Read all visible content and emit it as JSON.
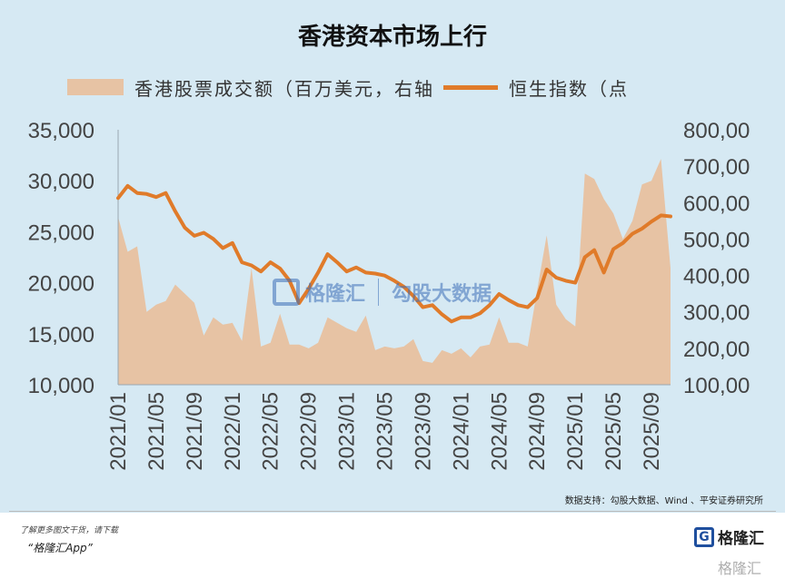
{
  "chart_data": {
    "type": "area+line",
    "title": "香港资本市场上行",
    "legend": [
      {
        "label": "香港股票成交额（百万美元，右轴",
        "kind": "area",
        "color": "#e7c3a4"
      },
      {
        "label": "恒生指数（点",
        "kind": "line",
        "color": "#e07b2a"
      }
    ],
    "left_axis": {
      "ticks": [
        "35,000",
        "30,000",
        "25,000",
        "20,000",
        "15,000",
        "10,000"
      ],
      "range": [
        10000,
        35000
      ]
    },
    "right_axis": {
      "ticks": [
        "800,00",
        "700,00",
        "600,00",
        "500,00",
        "400,00",
        "300,00",
        "200,00",
        "100,00"
      ],
      "range": [
        100000,
        800000
      ]
    },
    "x_tick_labels": [
      "2021/01",
      "2021/05",
      "2021/09",
      "2022/01",
      "2022/05",
      "2022/09",
      "2023/01",
      "2023/05",
      "2023/09",
      "2024/01",
      "2024/05",
      "2024/09",
      "2025/01",
      "2025/05",
      "2025/09"
    ],
    "x": [
      "2021/01",
      "2021/02",
      "2021/03",
      "2021/04",
      "2021/05",
      "2021/06",
      "2021/07",
      "2021/08",
      "2021/09",
      "2021/10",
      "2021/11",
      "2021/12",
      "2022/01",
      "2022/02",
      "2022/03",
      "2022/04",
      "2022/05",
      "2022/06",
      "2022/07",
      "2022/08",
      "2022/09",
      "2022/10",
      "2022/11",
      "2022/12",
      "2023/01",
      "2023/02",
      "2023/03",
      "2023/04",
      "2023/05",
      "2023/06",
      "2023/07",
      "2023/08",
      "2023/09",
      "2023/10",
      "2023/11",
      "2023/12",
      "2024/01",
      "2024/02",
      "2024/03",
      "2024/04",
      "2024/05",
      "2024/06",
      "2024/07",
      "2024/08",
      "2024/09",
      "2024/10",
      "2024/11",
      "2024/12",
      "2025/01",
      "2025/02",
      "2025/03",
      "2025/04",
      "2025/05",
      "2025/06",
      "2025/07",
      "2025/08",
      "2025/09",
      "2025/10",
      "2025/11"
    ],
    "series": [
      {
        "name": "香港股票成交额（百万美元，右轴",
        "type": "area",
        "axis": "right",
        "values": [
          560000,
          465000,
          480000,
          300000,
          320000,
          330000,
          375000,
          350000,
          325000,
          235000,
          285000,
          265000,
          270000,
          220000,
          420000,
          205000,
          215000,
          295000,
          210000,
          210000,
          200000,
          215000,
          285000,
          270000,
          255000,
          245000,
          290000,
          195000,
          205000,
          200000,
          205000,
          225000,
          165000,
          160000,
          195000,
          185000,
          200000,
          175000,
          205000,
          210000,
          285000,
          215000,
          215000,
          205000,
          360000,
          510000,
          320000,
          280000,
          260000,
          680000,
          665000,
          610000,
          570000,
          500000,
          550000,
          650000,
          660000,
          720000,
          420000
        ]
      },
      {
        "name": "恒生指数（点",
        "type": "line",
        "axis": "left",
        "values": [
          28300,
          29500,
          28800,
          28700,
          28400,
          28800,
          27000,
          25400,
          24600,
          24900,
          24300,
          23400,
          23900,
          22000,
          21700,
          21100,
          22000,
          21400,
          20200,
          18000,
          19400,
          21000,
          22800,
          22000,
          21100,
          21500,
          21000,
          20900,
          20700,
          20200,
          19600,
          18700,
          17600,
          17800,
          16900,
          16200,
          16600,
          16600,
          17000,
          17800,
          18900,
          18300,
          17800,
          17600,
          18500,
          21300,
          20500,
          20200,
          20000,
          22500,
          23200,
          21000,
          23300,
          23900,
          24800,
          25300,
          26000,
          26600,
          26500
        ]
      }
    ]
  },
  "source_note": "数据支持：勾股大数据、Wind 、平安证券研究所",
  "watermark": {
    "brand": "格隆汇",
    "brand_url": "www.gelonghui.com",
    "sub_brand": "勾股大数据",
    "sub_url": "www.goguodata.com"
  },
  "footer": {
    "promo_line1": "了解更多图文干货，请下载",
    "promo_line2": "“格隆汇App”",
    "logo_text": "格隆汇",
    "logo_mark": "G",
    "corner_watermark": "格隆汇"
  }
}
